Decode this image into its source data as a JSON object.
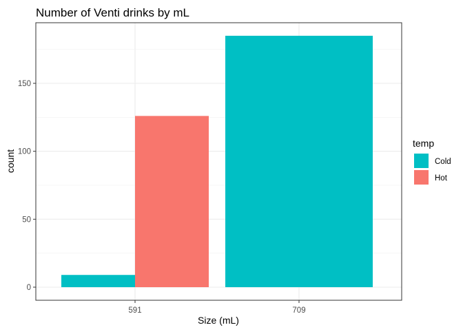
{
  "chart_data": {
    "type": "bar",
    "title": "Number of Venti drinks by mL",
    "xlabel": "Size (mL)",
    "ylabel": "count",
    "categories": [
      "591",
      "709"
    ],
    "series": [
      {
        "name": "Cold",
        "color": "#00BFC4",
        "values": [
          9,
          185
        ]
      },
      {
        "name": "Hot",
        "color": "#F8766D",
        "values": [
          126,
          null
        ]
      }
    ],
    "ylim": [
      0,
      195
    ],
    "yticks": [
      0,
      50,
      100,
      150
    ],
    "grid": true,
    "legend": {
      "title": "temp",
      "placement": "right"
    }
  }
}
